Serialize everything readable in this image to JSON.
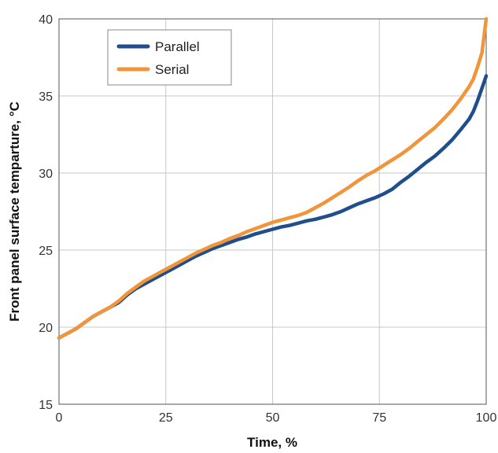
{
  "chart_data": {
    "type": "line",
    "xlabel": "Time, %",
    "ylabel": "Front panel surface temparture, °C",
    "xlim": [
      0,
      100
    ],
    "ylim": [
      15,
      40
    ],
    "x_ticks": [
      0,
      25,
      50,
      75,
      100
    ],
    "y_ticks": [
      15,
      20,
      25,
      30,
      35,
      40
    ],
    "grid": true,
    "legend": {
      "position": "top-left",
      "entries": [
        "Parallel",
        "Serial"
      ]
    },
    "series": [
      {
        "name": "Parallel",
        "color": "#1f4e8c",
        "x": [
          0,
          2,
          4,
          6,
          8,
          10,
          12,
          14,
          16,
          18,
          20,
          22,
          24,
          26,
          28,
          30,
          32,
          34,
          36,
          38,
          40,
          42,
          44,
          46,
          48,
          50,
          52,
          54,
          56,
          58,
          60,
          62,
          64,
          66,
          68,
          70,
          72,
          74,
          76,
          78,
          80,
          82,
          84,
          86,
          88,
          90,
          92,
          94,
          96,
          97,
          98,
          99,
          100
        ],
        "y": [
          19.3,
          19.6,
          19.9,
          20.3,
          20.7,
          21.0,
          21.3,
          21.6,
          22.1,
          22.5,
          22.8,
          23.1,
          23.4,
          23.7,
          24.0,
          24.3,
          24.6,
          24.85,
          25.1,
          25.3,
          25.5,
          25.7,
          25.85,
          26.05,
          26.2,
          26.35,
          26.5,
          26.6,
          26.75,
          26.9,
          27.0,
          27.15,
          27.3,
          27.5,
          27.75,
          28.0,
          28.2,
          28.4,
          28.65,
          28.95,
          29.4,
          29.8,
          30.25,
          30.7,
          31.1,
          31.6,
          32.15,
          32.8,
          33.5,
          34.0,
          34.7,
          35.5,
          36.3
        ]
      },
      {
        "name": "Serial",
        "color": "#f0953a",
        "x": [
          0,
          2,
          4,
          6,
          8,
          10,
          12,
          14,
          16,
          18,
          20,
          22,
          24,
          26,
          28,
          30,
          32,
          34,
          36,
          38,
          40,
          42,
          44,
          46,
          48,
          50,
          52,
          54,
          56,
          58,
          60,
          62,
          64,
          66,
          68,
          70,
          72,
          74,
          76,
          78,
          80,
          82,
          84,
          86,
          88,
          90,
          92,
          94,
          96,
          97,
          98,
          99,
          100
        ],
        "y": [
          19.3,
          19.6,
          19.9,
          20.3,
          20.7,
          21.0,
          21.3,
          21.7,
          22.2,
          22.6,
          23.0,
          23.3,
          23.6,
          23.9,
          24.2,
          24.5,
          24.8,
          25.05,
          25.3,
          25.5,
          25.75,
          25.95,
          26.2,
          26.4,
          26.6,
          26.8,
          26.95,
          27.1,
          27.25,
          27.45,
          27.75,
          28.05,
          28.4,
          28.75,
          29.1,
          29.5,
          29.85,
          30.15,
          30.5,
          30.85,
          31.2,
          31.6,
          32.05,
          32.5,
          32.95,
          33.5,
          34.1,
          34.8,
          35.6,
          36.1,
          36.9,
          37.8,
          40.0
        ]
      }
    ]
  }
}
